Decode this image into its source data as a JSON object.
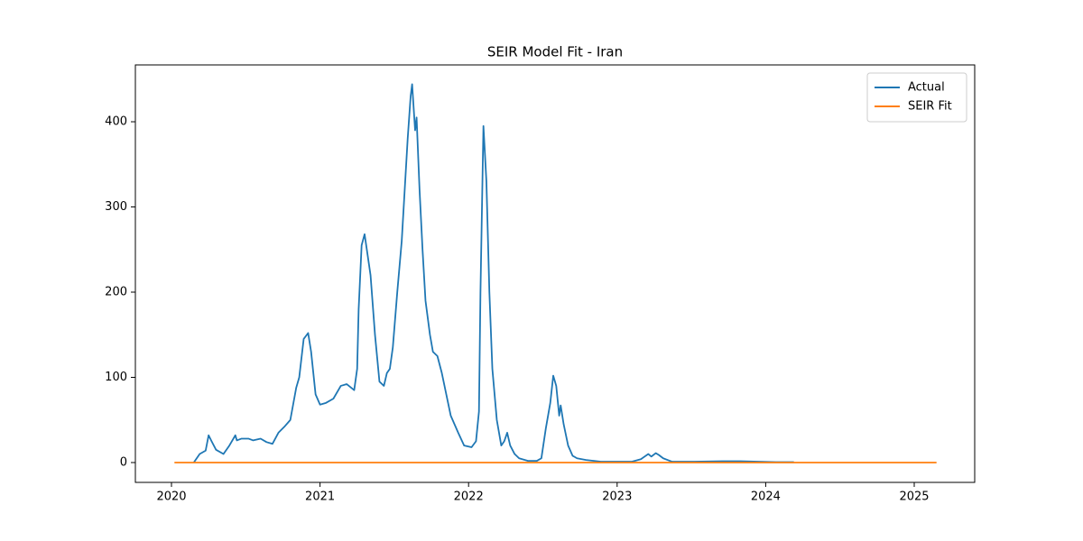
{
  "chart_data": {
    "type": "line",
    "title": "SEIR Model Fit - Iran",
    "xlim": [
      2019.757,
      2025.407
    ],
    "xticks": [
      2020,
      2021,
      2022,
      2023,
      2024,
      2025
    ],
    "ylim": [
      -23.3,
      466.7
    ],
    "yticks": [
      0,
      100,
      200,
      300,
      400
    ],
    "grid": false,
    "legend": "upper right",
    "series": [
      {
        "name": "Actual",
        "color": "#1f77b4",
        "x": [
          2020.15,
          2020.19,
          2020.23,
          2020.25,
          2020.27,
          2020.3,
          2020.35,
          2020.39,
          2020.43,
          2020.44,
          2020.47,
          2020.52,
          2020.55,
          2020.6,
          2020.64,
          2020.68,
          2020.72,
          2020.76,
          2020.8,
          2020.84,
          2020.86,
          2020.89,
          2020.92,
          2020.94,
          2020.97,
          2021.0,
          2021.04,
          2021.09,
          2021.14,
          2021.18,
          2021.23,
          2021.25,
          2021.26,
          2021.28,
          2021.3,
          2021.34,
          2021.37,
          2021.4,
          2021.43,
          2021.45,
          2021.47,
          2021.49,
          2021.52,
          2021.55,
          2021.57,
          2021.59,
          2021.61,
          2021.62,
          2021.64,
          2021.65,
          2021.67,
          2021.69,
          2021.71,
          2021.74,
          2021.76,
          2021.79,
          2021.82,
          2021.85,
          2021.88,
          2021.93,
          2021.97,
          2022.02,
          2022.05,
          2022.07,
          2022.08,
          2022.1,
          2022.12,
          2022.14,
          2022.16,
          2022.19,
          2022.22,
          2022.24,
          2022.26,
          2022.28,
          2022.31,
          2022.34,
          2022.4,
          2022.46,
          2022.49,
          2022.52,
          2022.55,
          2022.57,
          2022.59,
          2022.61,
          2022.62,
          2022.64,
          2022.67,
          2022.7,
          2022.73,
          2022.79,
          2022.89,
          2022.98,
          2023.1,
          2023.16,
          2023.21,
          2023.23,
          2023.26,
          2023.28,
          2023.31,
          2023.37,
          2023.52,
          2023.71,
          2023.83,
          2023.95,
          2024.07,
          2024.19
        ],
        "values": [
          0,
          10,
          14,
          32,
          25,
          15,
          10,
          20,
          32,
          26,
          28,
          28,
          26,
          28,
          24,
          22,
          35,
          42,
          50,
          88,
          100,
          145,
          152,
          130,
          80,
          68,
          70,
          75,
          90,
          92,
          85,
          110,
          180,
          255,
          268,
          220,
          150,
          95,
          90,
          105,
          110,
          135,
          200,
          260,
          320,
          380,
          430,
          444,
          390,
          405,
          320,
          250,
          190,
          150,
          130,
          125,
          105,
          80,
          55,
          35,
          20,
          18,
          25,
          60,
          200,
          395,
          330,
          200,
          110,
          50,
          20,
          25,
          35,
          20,
          10,
          5,
          2,
          2,
          5,
          40,
          70,
          102,
          90,
          55,
          67,
          45,
          20,
          8,
          5,
          3,
          1,
          1,
          1,
          4,
          10,
          7,
          11,
          9,
          5,
          1,
          1,
          1.5,
          1.5,
          1,
          0.5,
          0.5
        ]
      },
      {
        "name": "SEIR Fit",
        "color": "#ff7f0e",
        "x": [
          2020.02,
          2025.15
        ],
        "values": [
          0,
          0
        ]
      }
    ]
  }
}
